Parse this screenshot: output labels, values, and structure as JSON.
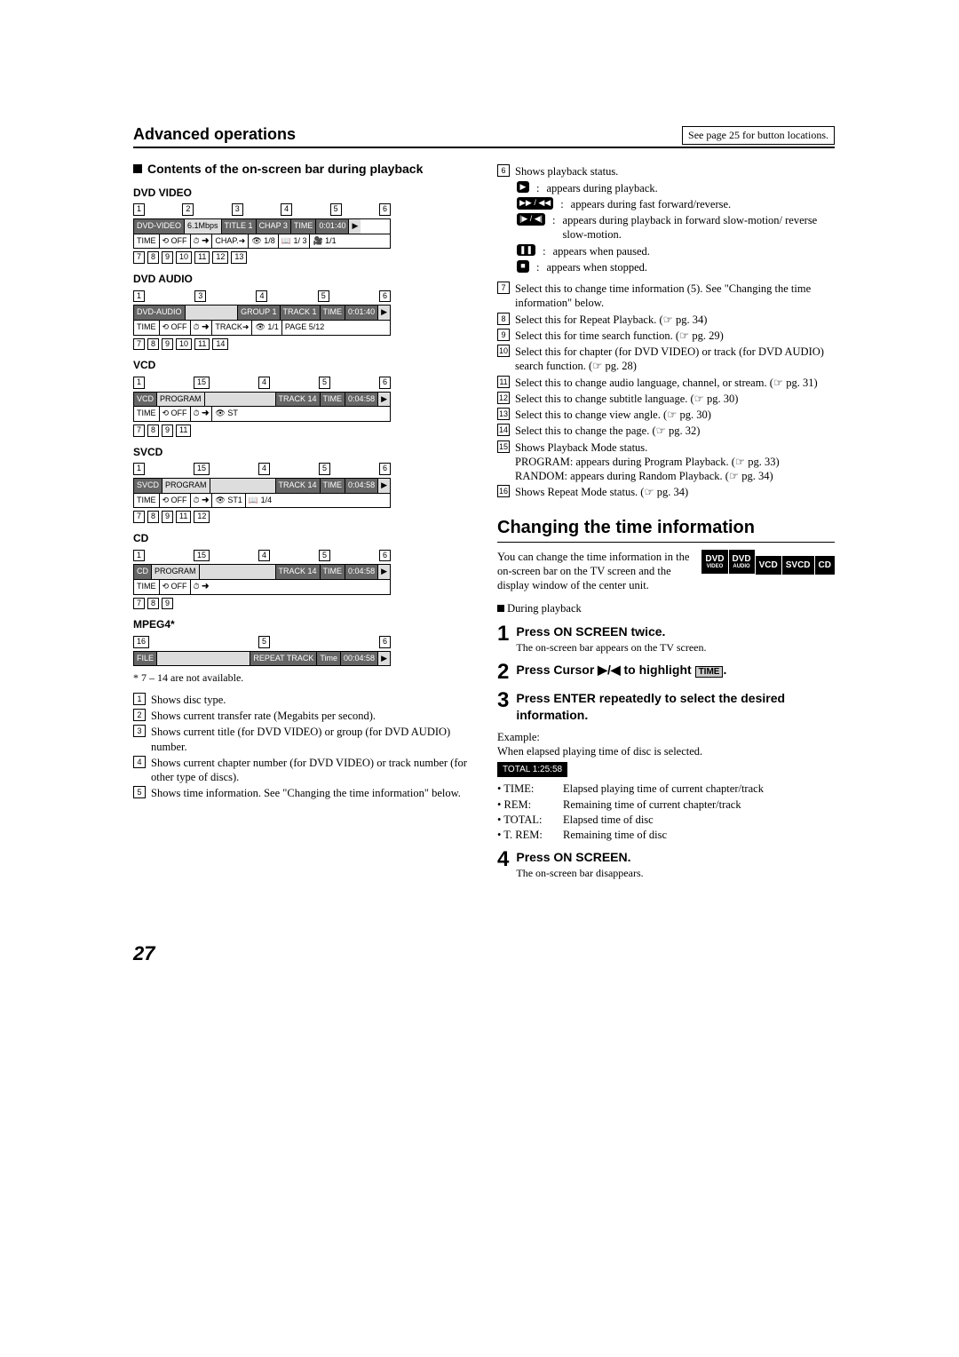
{
  "header": {
    "title": "Advanced operations",
    "pageRef": "See page 25 for button locations."
  },
  "section1": {
    "title": "Contents of the on-screen bar during playback",
    "discs": [
      {
        "label": "DVD VIDEO",
        "topLegend": [
          "1",
          "2",
          "3",
          "4",
          "5",
          "6"
        ],
        "row1": [
          "DVD-VIDEO",
          "6.1Mbps",
          "TITLE 1",
          "CHAP 3",
          "TIME",
          "0:01:40",
          "▶"
        ],
        "row1Class": [
          "dark",
          "light",
          "dark",
          "dark",
          "dark",
          "dark",
          "light"
        ],
        "row2": [
          "TIME",
          "⟲ OFF",
          "⏱ ➜",
          "CHAP.➜",
          "👁 1/8",
          "📖 1/ 3",
          "🎥 1/1"
        ],
        "botLegend": [
          "7",
          "8",
          "9",
          "10",
          "11",
          "12",
          "13"
        ]
      },
      {
        "label": "DVD AUDIO",
        "topLegend": [
          "1",
          "3",
          "4",
          "5",
          "6"
        ],
        "row1": [
          "DVD-AUDIO",
          "",
          "GROUP 1",
          "TRACK 1",
          "TIME",
          "0:01:40",
          "▶"
        ],
        "row1Class": [
          "dark",
          "light",
          "dark",
          "dark",
          "dark",
          "dark",
          "light"
        ],
        "row2": [
          "TIME",
          "⟲ OFF",
          "⏱ ➜",
          "TRACK➜",
          "👁 1/1",
          "PAGE 5/12"
        ],
        "botLegend": [
          "7",
          "8",
          "9",
          "10",
          "11",
          "14"
        ]
      },
      {
        "label": "VCD",
        "topLegend": [
          "1",
          "15",
          "4",
          "5",
          "6"
        ],
        "row1": [
          "VCD",
          "PROGRAM",
          "",
          "TRACK 14",
          "TIME",
          "0:04:58",
          "▶"
        ],
        "row1Class": [
          "dark",
          "light",
          "light",
          "dark",
          "dark",
          "dark",
          "light"
        ],
        "row2": [
          "TIME",
          "⟲ OFF",
          "⏱ ➜",
          "👁 ST"
        ],
        "botLegend": [
          "7",
          "8",
          "9",
          "11"
        ]
      },
      {
        "label": "SVCD",
        "topLegend": [
          "1",
          "15",
          "4",
          "5",
          "6"
        ],
        "row1": [
          "SVCD",
          "PROGRAM",
          "",
          "TRACK 14",
          "TIME",
          "0:04:58",
          "▶"
        ],
        "row1Class": [
          "dark",
          "light",
          "light",
          "dark",
          "dark",
          "dark",
          "light"
        ],
        "row2": [
          "TIME",
          "⟲ OFF",
          "⏱ ➜",
          "👁 ST1",
          "📖 1/4"
        ],
        "botLegend": [
          "7",
          "8",
          "9",
          "11",
          "12"
        ]
      },
      {
        "label": "CD",
        "topLegend": [
          "1",
          "15",
          "4",
          "5",
          "6"
        ],
        "row1": [
          "CD",
          "PROGRAM",
          "",
          "TRACK 14",
          "TIME",
          "0:04:58",
          "▶"
        ],
        "row1Class": [
          "dark",
          "light",
          "light",
          "dark",
          "dark",
          "dark",
          "light"
        ],
        "row2": [
          "TIME",
          "⟲ OFF",
          "⏱ ➜"
        ],
        "botLegend": [
          "7",
          "8",
          "9"
        ]
      },
      {
        "label": "MPEG4*",
        "topLegend": [
          "16",
          "5",
          "6"
        ],
        "row1": [
          "FILE",
          "",
          "REPEAT TRACK",
          "Time",
          "00:04:58",
          "▶"
        ],
        "row1Class": [
          "dark",
          "light",
          "dark",
          "dark",
          "dark",
          "light"
        ],
        "row2": [],
        "botLegend": []
      }
    ],
    "footnote": "* 7 – 14 are not available.",
    "leftList": [
      {
        "n": "1",
        "t": "Shows disc type."
      },
      {
        "n": "2",
        "t": "Shows current transfer rate (Megabits per second)."
      },
      {
        "n": "3",
        "t": "Shows current title (for DVD VIDEO) or group (for DVD AUDIO) number."
      },
      {
        "n": "4",
        "t": "Shows current chapter number (for DVD VIDEO) or track number (for other type of discs)."
      },
      {
        "n": "5",
        "t": "Shows time information. See \"Changing the time information\" below."
      }
    ]
  },
  "rightTop": {
    "item6": "Shows playback status.",
    "statuses": [
      {
        "icon": "▶",
        "text": "appears during playback."
      },
      {
        "icon": "▶▶ / ◀◀",
        "text": "appears during fast forward/reverse."
      },
      {
        "icon": "|▶ / ◀|",
        "text": "appears during playback in forward slow-motion/ reverse slow-motion."
      },
      {
        "icon": "❚❚",
        "text": "appears when paused."
      },
      {
        "icon": "■",
        "text": "appears when stopped."
      }
    ],
    "list": [
      {
        "n": "7",
        "t": "Select this to change time information (5). See \"Changing the time information\" below."
      },
      {
        "n": "8",
        "t": "Select this for Repeat Playback. (☞ pg. 34)"
      },
      {
        "n": "9",
        "t": "Select this for time search function. (☞ pg. 29)"
      },
      {
        "n": "10",
        "t": "Select this for chapter (for DVD VIDEO) or track (for DVD AUDIO) search function. (☞ pg. 28)"
      },
      {
        "n": "11",
        "t": "Select this to change audio language, channel, or stream. (☞ pg. 31)"
      },
      {
        "n": "12",
        "t": "Select this to change subtitle language. (☞ pg. 30)"
      },
      {
        "n": "13",
        "t": "Select this to change view angle. (☞ pg. 30)"
      },
      {
        "n": "14",
        "t": "Select this to change the page. (☞ pg. 32)"
      },
      {
        "n": "15",
        "t": "Shows Playback Mode status.\nPROGRAM: appears during Program Playback. (☞ pg. 33)\nRANDOM: appears during Random Playback. (☞ pg. 34)"
      },
      {
        "n": "16",
        "t": "Shows Repeat Mode status. (☞ pg. 34)"
      }
    ]
  },
  "section2": {
    "title": "Changing the time information",
    "intro": "You can change the time information in the on-screen bar on the TV screen and the display window of the center unit.",
    "badges": [
      "DVD|VIDEO",
      "DVD|AUDIO",
      "VCD",
      "SVCD",
      "CD"
    ],
    "during": "During playback",
    "steps": [
      {
        "n": "1",
        "title": "Press ON SCREEN twice.",
        "desc": "The on-screen bar appears on the TV screen."
      },
      {
        "n": "2",
        "title": "Press Cursor ▶/◀ to highlight ",
        "timeWord": "TIME",
        "title2": "."
      },
      {
        "n": "3",
        "title": "Press ENTER repeatedly to select the desired information."
      }
    ],
    "exampleLabel": "Example:",
    "exampleDesc": "When elapsed playing time of disc is selected.",
    "exampleBox": "TOTAL 1:25:58",
    "defs": [
      {
        "k": "• TIME:",
        "v": "Elapsed playing time of current chapter/track"
      },
      {
        "k": "• REM:",
        "v": "Remaining time of current chapter/track"
      },
      {
        "k": "• TOTAL:",
        "v": "Elapsed time of disc"
      },
      {
        "k": "• T. REM:",
        "v": "Remaining time of disc"
      }
    ],
    "step4": {
      "n": "4",
      "title": "Press ON SCREEN.",
      "desc": "The on-screen bar disappears."
    }
  },
  "pageNumber": "27"
}
